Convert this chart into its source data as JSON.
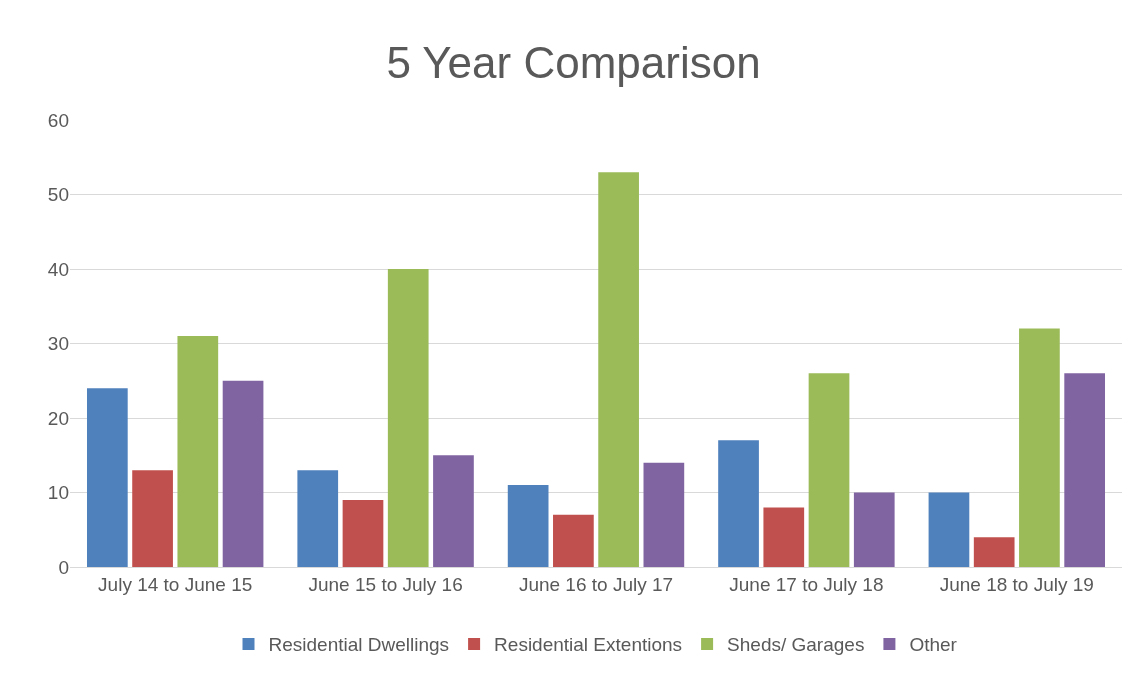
{
  "chart_data": {
    "type": "bar",
    "title": "5 Year Comparison",
    "categories": [
      "July 14 to June 15",
      "June 15 to July 16",
      "June 16 to July 17",
      "June 17 to July 18",
      "June 18 to July 19"
    ],
    "series": [
      {
        "name": "Residential Dwellings",
        "color": "#4f81bd",
        "values": [
          24,
          13,
          11,
          17,
          10
        ]
      },
      {
        "name": "Residential Extentions",
        "color": "#c0504d",
        "values": [
          13,
          9,
          7,
          8,
          4
        ]
      },
      {
        "name": "Sheds/ Garages",
        "color": "#9bbb59",
        "values": [
          31,
          40,
          53,
          26,
          32
        ]
      },
      {
        "name": "Other",
        "color": "#8064a2",
        "values": [
          25,
          15,
          14,
          10,
          26
        ]
      }
    ],
    "ylim": [
      0,
      60
    ],
    "yticks": [
      0,
      10,
      20,
      30,
      40,
      50,
      60
    ],
    "grid": "y",
    "legend": "bottom"
  }
}
